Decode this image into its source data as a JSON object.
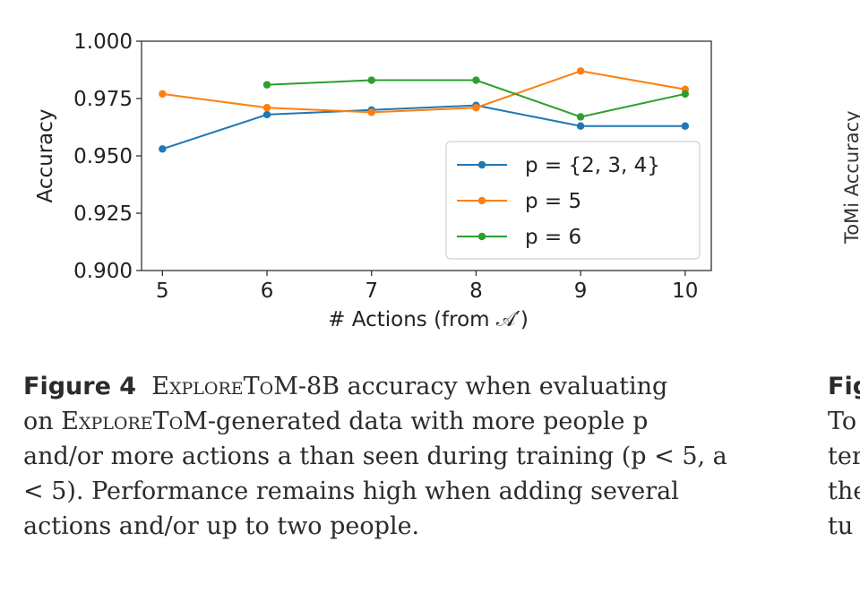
{
  "chart_data": {
    "type": "line",
    "xlabel": "# Actions (from 𝒜′)",
    "ylabel": "Accuracy",
    "x": [
      5,
      6,
      7,
      8,
      9,
      10
    ],
    "ylim": [
      0.9,
      1.0
    ],
    "xticks": [
      "5",
      "6",
      "7",
      "8",
      "9",
      "10"
    ],
    "yticks": [
      "0.900",
      "0.925",
      "0.950",
      "0.975",
      "1.000"
    ],
    "grid": false,
    "legend_position": "lower-right",
    "series": [
      {
        "name": "p = {2, 3, 4}",
        "color": "#1f77b4",
        "x": [
          5,
          6,
          7,
          8,
          9,
          10
        ],
        "values": [
          0.953,
          0.968,
          0.97,
          0.972,
          0.963,
          0.963
        ]
      },
      {
        "name": "p = 5",
        "color": "#ff7f0e",
        "x": [
          5,
          6,
          7,
          8,
          9,
          10
        ],
        "values": [
          0.977,
          0.971,
          0.969,
          0.971,
          0.987,
          0.979
        ]
      },
      {
        "name": "p = 6",
        "color": "#2ca02c",
        "x": [
          6,
          7,
          8,
          9,
          10
        ],
        "values": [
          0.981,
          0.983,
          0.983,
          0.967,
          0.977
        ]
      }
    ]
  },
  "caption": {
    "label": "Figure 4",
    "name_first": "ExploreToM",
    "line1_rest": "-8B accuracy when evaluating",
    "line2_pre": "on ",
    "name_second": "ExploreToM",
    "line2_rest": "-generated data with more people p",
    "rest": "and/or more actions a than seen during training (p < 5, a < 5). Performance remains high when adding several actions and/or up to two people."
  },
  "right_panel": {
    "ylabel_partial": "ToMi Accuracy",
    "caption_label_partial": "Fig",
    "caption_lines_partial": [
      "To",
      "ter",
      "the",
      "tu"
    ]
  }
}
